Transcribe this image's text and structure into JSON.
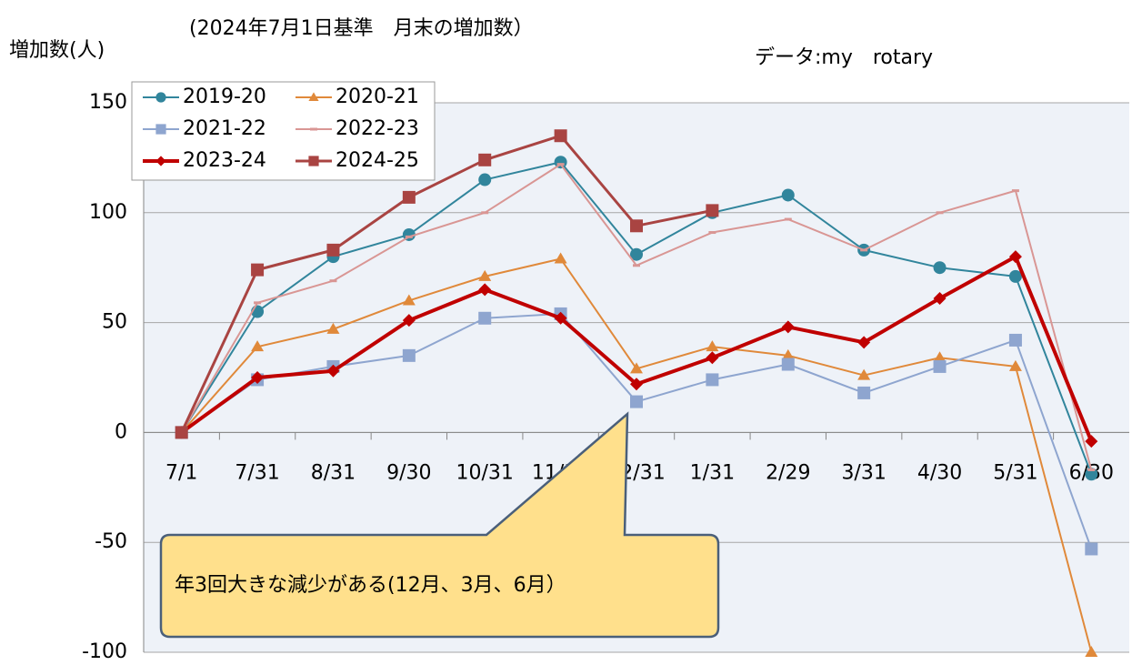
{
  "chart_data": {
    "type": "line",
    "title": "(2024年7月1日基準　月末の増加数）",
    "y_label": "増加数(人)",
    "source": "データ:my　rotary",
    "annotation": "年3回大きな減少がある(12月、3月、6月）",
    "categories": [
      "7/1",
      "7/31",
      "8/31",
      "9/30",
      "10/31",
      "11/30",
      "12/31",
      "1/31",
      "2/29",
      "3/31",
      "4/30",
      "5/31",
      "6/30"
    ],
    "series": [
      {
        "name": "2019-20",
        "color": "#31859c",
        "marker": "circle",
        "values": [
          0,
          55,
          80,
          90,
          115,
          123,
          81,
          100,
          108,
          83,
          75,
          71,
          -19
        ]
      },
      {
        "name": "2020-21",
        "color": "#e0893a",
        "marker": "triangle",
        "values": [
          0,
          39,
          47,
          60,
          71,
          79,
          29,
          39,
          35,
          26,
          34,
          30,
          -100
        ]
      },
      {
        "name": "2021-22",
        "color": "#8ea5cf",
        "marker": "square",
        "values": [
          0,
          24,
          30,
          35,
          52,
          54,
          14,
          24,
          31,
          18,
          30,
          42,
          -53
        ]
      },
      {
        "name": "2022-23",
        "color": "#d99694",
        "marker": "dash",
        "values": [
          0,
          59,
          69,
          89,
          100,
          122,
          76,
          91,
          97,
          83,
          100,
          110,
          -17
        ]
      },
      {
        "name": "2023-24",
        "color": "#c00000",
        "marker": "diamond",
        "values": [
          0,
          25,
          28,
          51,
          65,
          52,
          22,
          34,
          48,
          41,
          61,
          80,
          -4
        ]
      },
      {
        "name": "2024-25",
        "color": "#a94442",
        "marker": "square",
        "values": [
          0,
          74,
          83,
          107,
          124,
          135,
          94,
          101,
          null,
          null,
          null,
          null,
          null
        ]
      }
    ],
    "ylim": [
      -100,
      150
    ],
    "yticks": [
      -100,
      -50,
      0,
      50,
      100,
      150
    ],
    "grid": true,
    "legend": "upper left"
  }
}
